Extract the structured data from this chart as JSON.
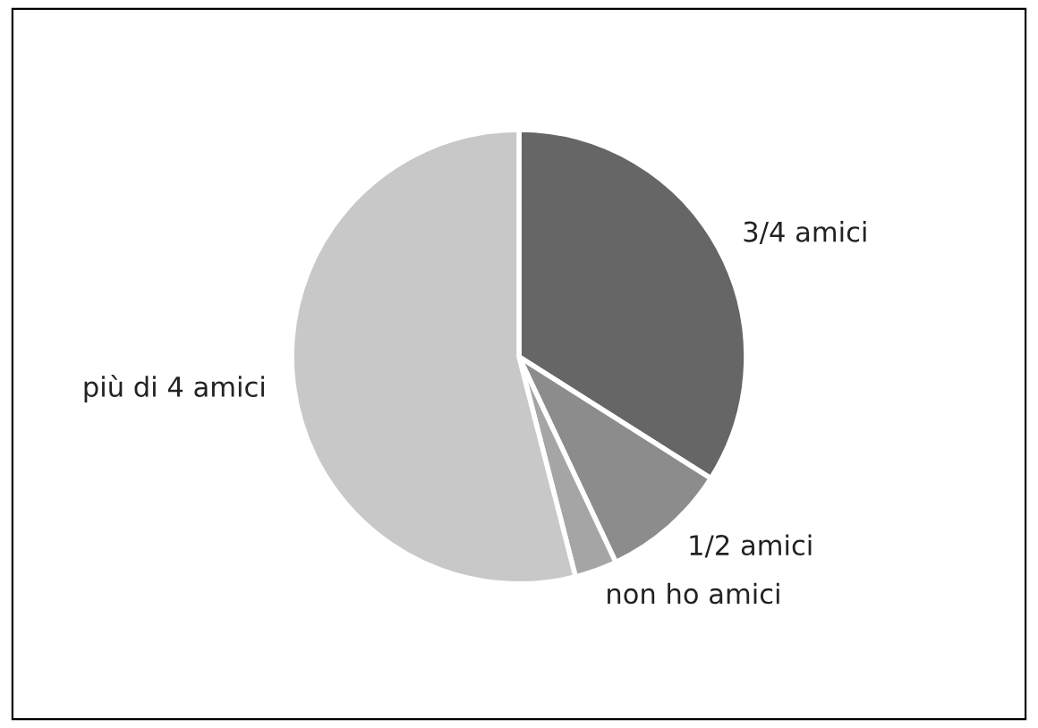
{
  "chart_data": {
    "type": "pie",
    "categories": [
      "3/4 amici",
      "1/2 amici",
      "non ho amici",
      "più di 4 amici"
    ],
    "values": [
      34,
      9,
      3,
      54
    ],
    "colors": [
      "#666666",
      "#8c8c8c",
      "#a5a5a5",
      "#c8c8c8"
    ]
  }
}
